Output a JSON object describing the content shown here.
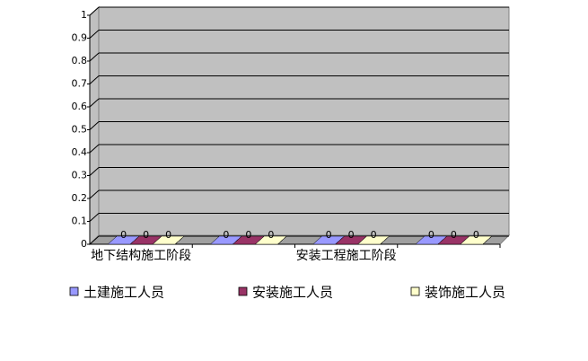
{
  "chart_data": {
    "type": "bar3d",
    "categories": [
      "地下结构施工阶段",
      null,
      "安装工程施工阶段",
      null
    ],
    "series": [
      {
        "name": "土建施工人员",
        "color": "#9999ff",
        "values": [
          0,
          0,
          0,
          0
        ]
      },
      {
        "name": "安装施工人员",
        "color": "#993366",
        "values": [
          0,
          0,
          0,
          0
        ]
      },
      {
        "name": "装饰施工人员",
        "color": "#ffffcc",
        "values": [
          0,
          0,
          0,
          0
        ]
      }
    ],
    "ylim": [
      0,
      1
    ],
    "yticks": [
      0,
      0.1,
      0.2,
      0.3,
      0.4,
      0.5,
      0.6,
      0.7,
      0.8,
      0.9,
      1
    ],
    "grid": true,
    "legend": "bottom",
    "data_labels": true
  }
}
